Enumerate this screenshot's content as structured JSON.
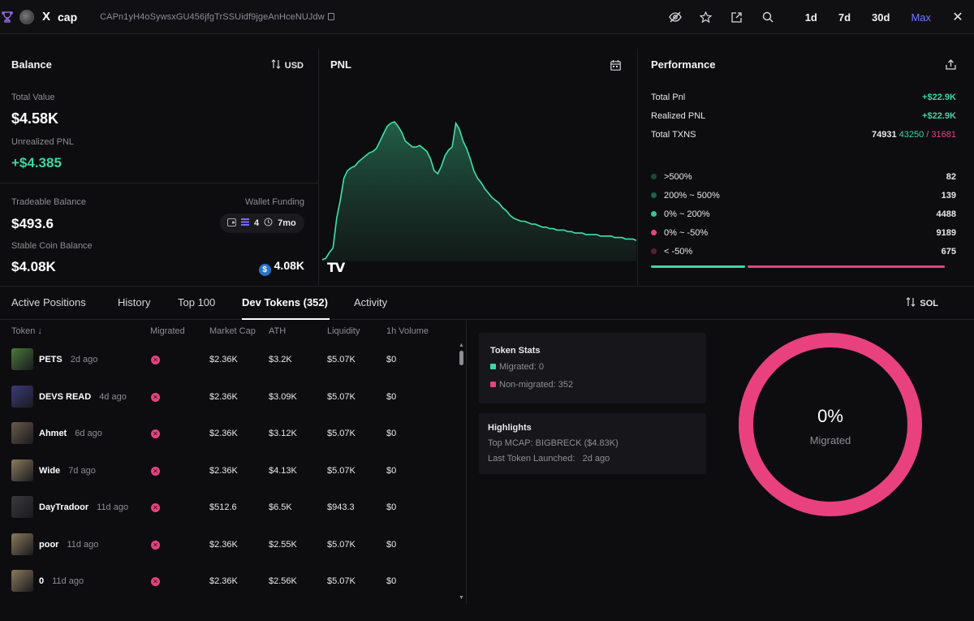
{
  "topbar": {
    "name": "cap",
    "x_label": "X",
    "address": "CAPn1yH4oSywsxGU456jfgTrSSUidf9jgeAnHceNUJdw",
    "ranges": [
      "1d",
      "7d",
      "30d",
      "Max"
    ],
    "active_range": "Max",
    "close_label": "✕"
  },
  "balance": {
    "title": "Balance",
    "currency_toggle": "USD",
    "total_value_label": "Total Value",
    "total_value": "$4.58K",
    "unrealized_label": "Unrealized PNL",
    "unrealized": "+$4.385",
    "tradeable_label": "Tradeable Balance",
    "tradeable": "$493.6",
    "wallet_funding_label": "Wallet Funding",
    "wallet_count": "4",
    "wallet_age": "7mo",
    "stable_label": "Stable Coin Balance",
    "stable": "$4.08K",
    "stable_coin_amount": "4.08K",
    "stable_coin_symbol": "$"
  },
  "pnl": {
    "title": "PNL",
    "logo_text": "TV",
    "series": [
      0,
      1,
      5,
      8,
      28,
      40,
      55,
      60,
      62,
      63,
      66,
      68,
      70,
      72,
      73,
      75,
      80,
      85,
      90,
      92,
      93,
      90,
      86,
      80,
      78,
      76,
      76,
      77,
      75,
      73,
      68,
      60,
      58,
      63,
      70,
      74,
      76,
      92,
      88,
      80,
      75,
      68,
      60,
      55,
      52,
      48,
      45,
      42,
      40,
      38,
      35,
      33,
      30,
      28,
      27,
      26,
      26,
      25,
      24,
      24,
      23,
      22,
      22,
      21,
      21,
      20,
      20,
      20,
      19,
      19,
      18,
      18,
      18,
      17,
      17,
      17,
      17,
      16,
      16,
      16,
      16,
      15,
      15,
      15,
      14,
      14,
      14,
      13
    ]
  },
  "performance": {
    "title": "Performance",
    "total_pnl_label": "Total Pnl",
    "total_pnl": "+$22.9K",
    "realized_label": "Realized PNL",
    "realized": "+$22.9K",
    "txns_label": "Total TXNS",
    "txns_total": "74931",
    "txns_buy": "43250",
    "txns_sep": "/",
    "txns_sell": "31681",
    "distribution": [
      {
        "label": ">500%",
        "value": "82",
        "color": "#1c4a36"
      },
      {
        "label": "200% ~ 500%",
        "value": "139",
        "color": "#1f6446"
      },
      {
        "label": "0% ~ 200%",
        "value": "4488",
        "color": "#2fc98f"
      },
      {
        "label": "0% ~ -50%",
        "value": "9189",
        "color": "#e9417e"
      },
      {
        "label": "< -50%",
        "value": "675",
        "color": "#5a1f33"
      }
    ],
    "win_fraction": 0.32
  },
  "tabs": {
    "items": [
      "Active Positions",
      "History",
      "Top 100",
      "Dev Tokens (352)",
      "Activity"
    ],
    "active": "Dev Tokens (352)",
    "unit_toggle": "SOL"
  },
  "table": {
    "headers": [
      "Token ↓",
      "Migrated",
      "Market Cap",
      "ATH",
      "Liquidity",
      "1h Volume"
    ],
    "rows": [
      {
        "name": "PETS",
        "age": "2d ago",
        "mcap": "$2.36K",
        "ath": "$3.2K",
        "liq": "$5.07K",
        "vol": "$0",
        "img": "#4a7a3a"
      },
      {
        "name": "DEVS READ",
        "age": "4d ago",
        "mcap": "$2.36K",
        "ath": "$3.09K",
        "liq": "$5.07K",
        "vol": "$0",
        "img": "#3a3a7a"
      },
      {
        "name": "Ahmet",
        "age": "6d ago",
        "mcap": "$2.36K",
        "ath": "$3.12K",
        "liq": "$5.07K",
        "vol": "$0",
        "img": "#6a5a4a"
      },
      {
        "name": "Wide",
        "age": "7d ago",
        "mcap": "$2.36K",
        "ath": "$4.13K",
        "liq": "$5.07K",
        "vol": "$0",
        "img": "#8a7a5a"
      },
      {
        "name": "DayTradoor",
        "age": "11d ago",
        "mcap": "$512.6",
        "ath": "$6.5K",
        "liq": "$943.3",
        "vol": "$0",
        "img": "#3a3a3a"
      },
      {
        "name": "poor",
        "age": "11d ago",
        "mcap": "$2.36K",
        "ath": "$2.55K",
        "liq": "$5.07K",
        "vol": "$0",
        "img": "#8a7a5a"
      },
      {
        "name": "0",
        "age": "11d ago",
        "mcap": "$2.36K",
        "ath": "$2.56K",
        "liq": "$5.07K",
        "vol": "$0",
        "img": "#8a7a5a"
      }
    ]
  },
  "token_stats": {
    "title": "Token Stats",
    "migrated": "Migrated: 0",
    "non_migrated": "Non-migrated: 352"
  },
  "highlights": {
    "title": "Highlights",
    "top_mcap": "Top MCAP: BIGBRECK ($4.83K)",
    "last_label": "Last Token Launched:",
    "last_value": "2d ago"
  },
  "donut": {
    "percent": "0%",
    "label": "Migrated",
    "migrated_fraction": 0,
    "color": "#e9417e"
  }
}
